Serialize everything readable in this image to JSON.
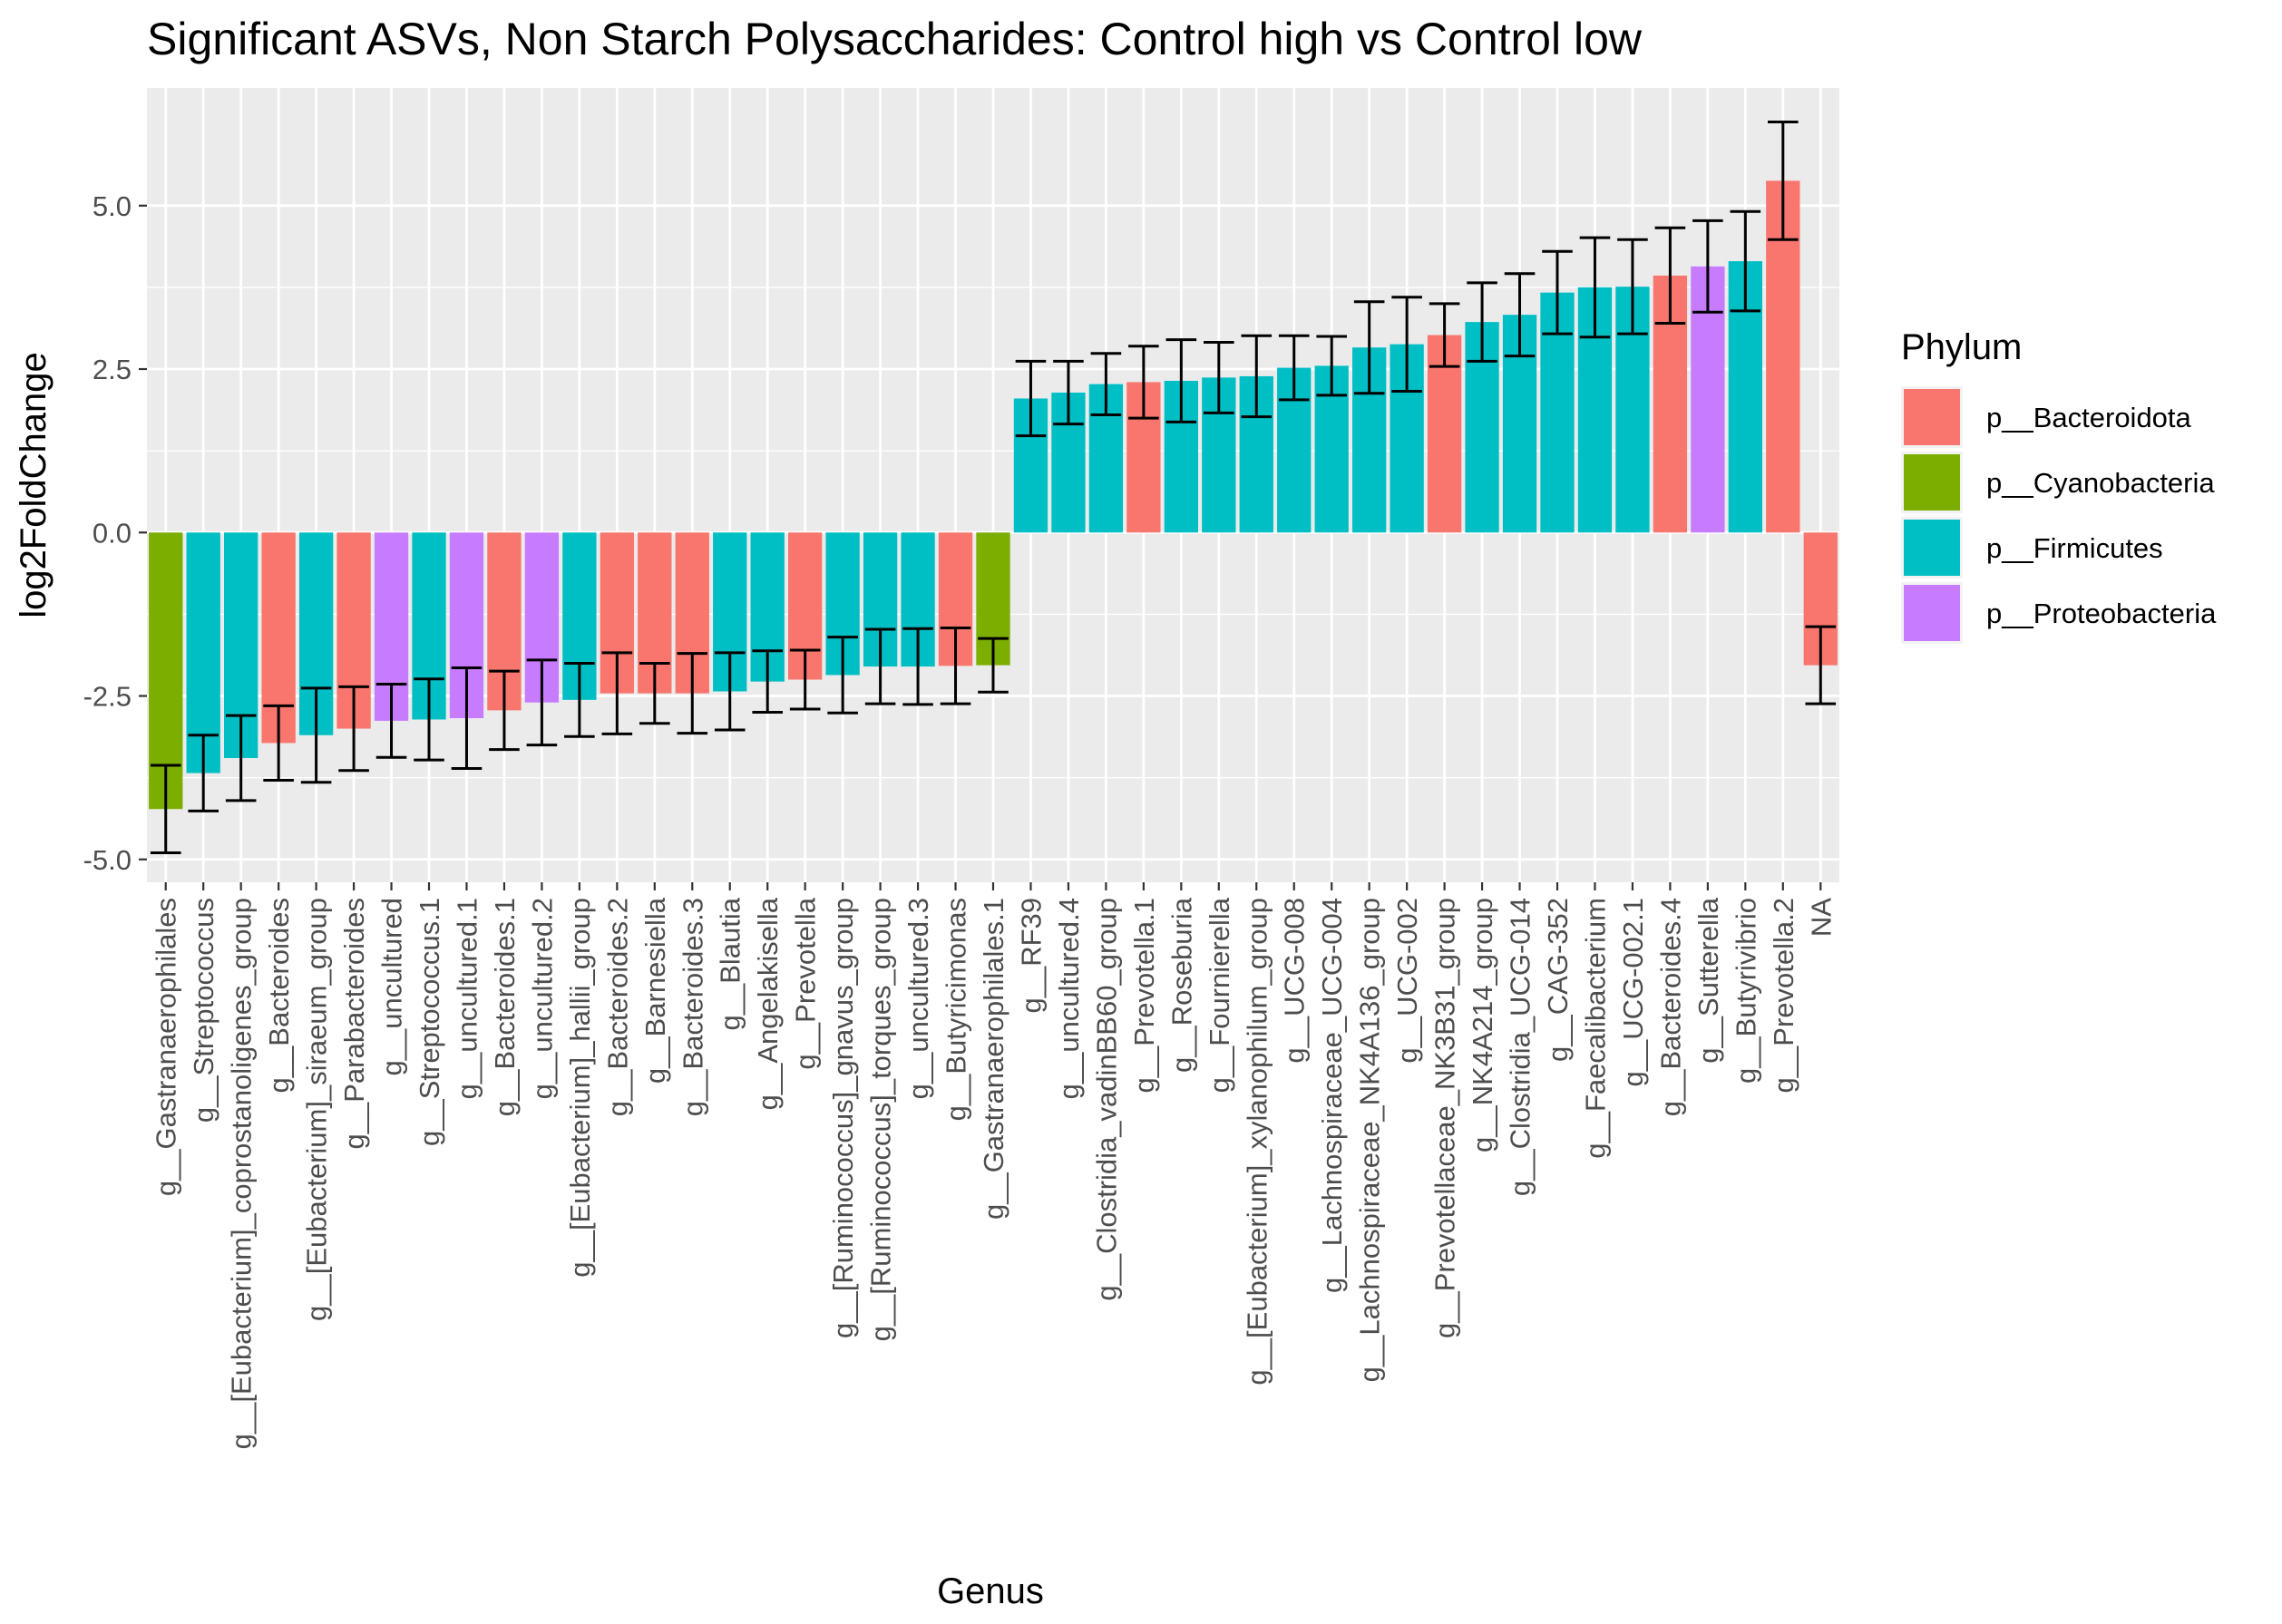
{
  "chart_data": {
    "type": "bar",
    "title": "Significant ASVs, Non Starch Polysaccharides: Control high vs Control low",
    "xlabel": "Genus",
    "ylabel": "log2FoldChange",
    "ylim": [
      -5.35,
      6.8
    ],
    "yticks": [
      -5.0,
      -2.5,
      0.0,
      2.5,
      5.0
    ],
    "ytick_labels": [
      "-5.0",
      "-2.5",
      "0.0",
      "2.5",
      "5.0"
    ],
    "grid": true,
    "legend": {
      "title": "Phylum",
      "position": "right",
      "entries": [
        {
          "name": "p__Bacteroidota",
          "color": "#F8766D"
        },
        {
          "name": "p__Cyanobacteria",
          "color": "#7CAE00"
        },
        {
          "name": "p__Firmicutes",
          "color": "#00BFC4"
        },
        {
          "name": "p__Proteobacteria",
          "color": "#C77CFF"
        }
      ]
    },
    "categories": [
      "g__Gastranaerophilales",
      "g__Streptococcus",
      "g__[Eubacterium]_coprostanoligenes_group",
      "g__Bacteroides",
      "g__[Eubacterium]_siraeum_group",
      "g__Parabacteroides",
      "g__uncultured",
      "g__Streptococcus.1",
      "g__uncultured.1",
      "g__Bacteroides.1",
      "g__uncultured.2",
      "g__[Eubacterium]_hallii_group",
      "g__Bacteroides.2",
      "g__Barnesiella",
      "g__Bacteroides.3",
      "g__Blautia",
      "g__Angelakisella",
      "g__Prevotella",
      "g__[Ruminococcus]_gnavus_group",
      "g__[Ruminococcus]_torques_group",
      "g__uncultured.3",
      "g__Butyricimonas",
      "g__Gastranaerophilales.1",
      "g__RF39",
      "g__uncultured.4",
      "g__Clostridia_vadinBB60_group",
      "g__Prevotella.1",
      "g__Roseburia",
      "g__Fournierella",
      "g__[Eubacterium]_xylanophilum_group",
      "g__UCG-008",
      "g__Lachnospiraceae_UCG-004",
      "g__Lachnospiraceae_NK4A136_group",
      "g__UCG-002",
      "g__Prevotellaceae_NK3B31_group",
      "g__NK4A214_group",
      "g__Clostridia_UCG-014",
      "g__CAG-352",
      "g__Faecalibacterium",
      "g__UCG-002.1",
      "g__Bacteroides.4",
      "g__Sutterella",
      "g__Butyrivibrio",
      "g__Prevotella.2",
      "NA"
    ],
    "values": [
      -4.23,
      -3.68,
      -3.45,
      -3.22,
      -3.1,
      -3.0,
      -2.88,
      -2.86,
      -2.84,
      -2.72,
      -2.6,
      -2.56,
      -2.46,
      -2.46,
      -2.46,
      -2.43,
      -2.28,
      -2.25,
      -2.18,
      -2.05,
      -2.05,
      -2.04,
      -2.03,
      2.05,
      2.14,
      2.27,
      2.3,
      2.32,
      2.37,
      2.39,
      2.52,
      2.55,
      2.83,
      2.88,
      3.02,
      3.22,
      3.33,
      3.67,
      3.75,
      3.76,
      3.93,
      4.07,
      4.15,
      5.38,
      -2.03
    ],
    "errors": [
      0.67,
      0.58,
      0.65,
      0.57,
      0.72,
      0.64,
      0.56,
      0.62,
      0.77,
      0.6,
      0.65,
      0.56,
      0.62,
      0.46,
      0.61,
      0.59,
      0.47,
      0.45,
      0.58,
      0.57,
      0.58,
      0.58,
      0.41,
      0.57,
      0.48,
      0.47,
      0.55,
      0.63,
      0.54,
      0.62,
      0.49,
      0.45,
      0.7,
      0.72,
      0.48,
      0.6,
      0.63,
      0.63,
      0.76,
      0.72,
      0.73,
      0.7,
      0.76,
      0.9,
      0.59
    ],
    "phyla": [
      "p__Cyanobacteria",
      "p__Firmicutes",
      "p__Firmicutes",
      "p__Bacteroidota",
      "p__Firmicutes",
      "p__Bacteroidota",
      "p__Proteobacteria",
      "p__Firmicutes",
      "p__Proteobacteria",
      "p__Bacteroidota",
      "p__Proteobacteria",
      "p__Firmicutes",
      "p__Bacteroidota",
      "p__Bacteroidota",
      "p__Bacteroidota",
      "p__Firmicutes",
      "p__Firmicutes",
      "p__Bacteroidota",
      "p__Firmicutes",
      "p__Firmicutes",
      "p__Firmicutes",
      "p__Bacteroidota",
      "p__Cyanobacteria",
      "p__Firmicutes",
      "p__Firmicutes",
      "p__Firmicutes",
      "p__Bacteroidota",
      "p__Firmicutes",
      "p__Firmicutes",
      "p__Firmicutes",
      "p__Firmicutes",
      "p__Firmicutes",
      "p__Firmicutes",
      "p__Firmicutes",
      "p__Bacteroidota",
      "p__Firmicutes",
      "p__Firmicutes",
      "p__Firmicutes",
      "p__Firmicutes",
      "p__Firmicutes",
      "p__Bacteroidota",
      "p__Proteobacteria",
      "p__Firmicutes",
      "p__Bacteroidota",
      "p__Bacteroidota"
    ]
  }
}
